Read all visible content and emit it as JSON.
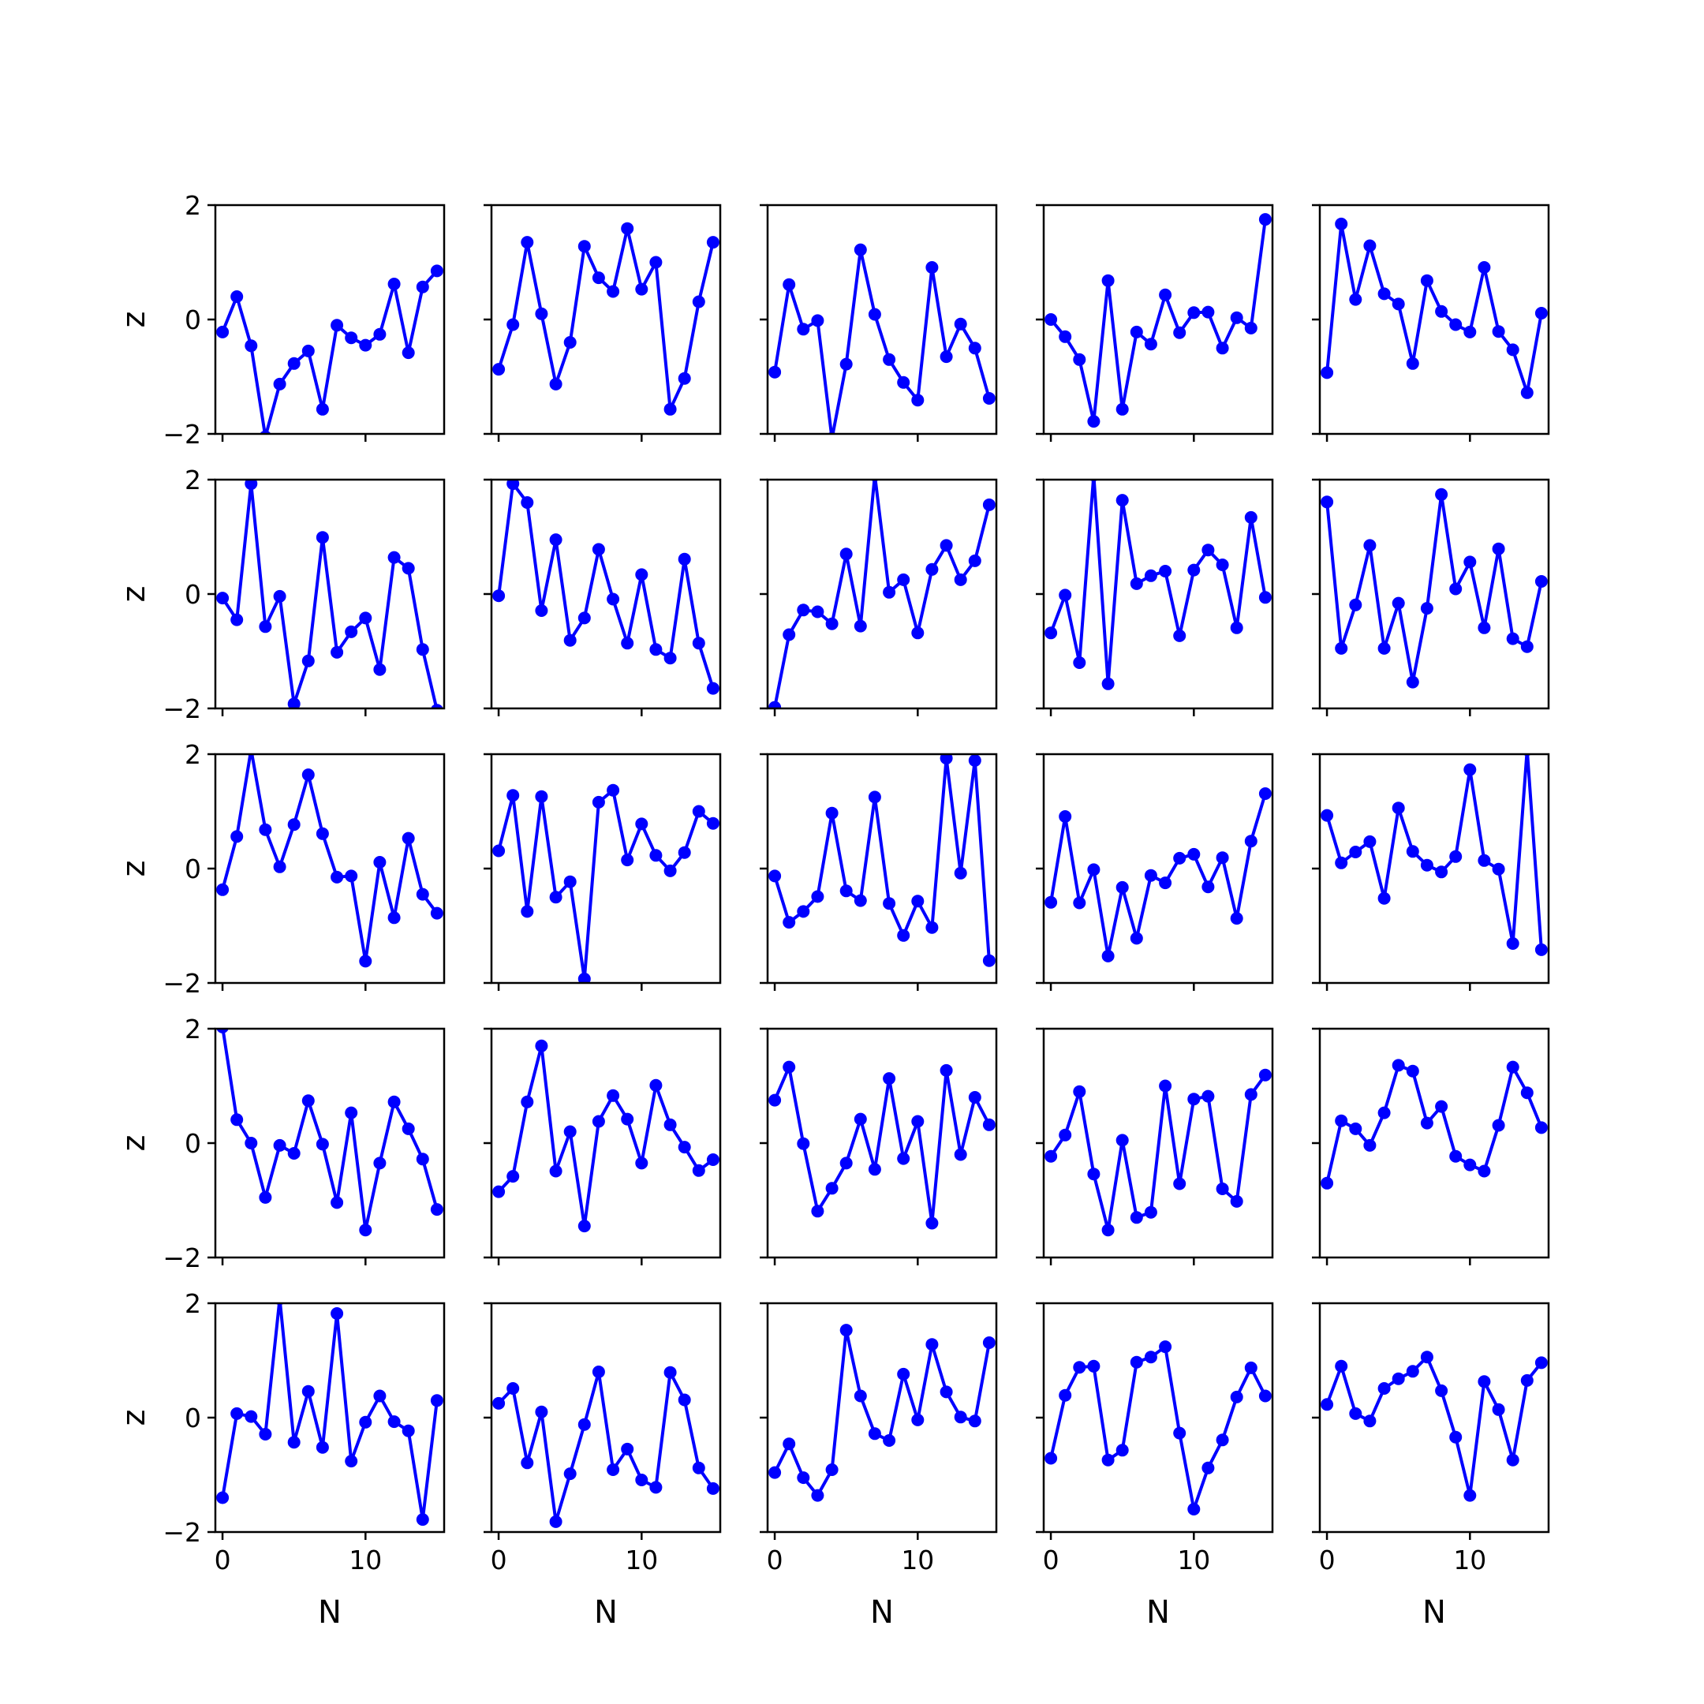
{
  "chart_data": {
    "type": "line",
    "layout": "5x5 grid of subplots",
    "xlabel": "N",
    "ylabel": "z",
    "xlim": [
      -0.5,
      15.5
    ],
    "ylim": [
      -2,
      2
    ],
    "x_ticks": [
      0,
      10
    ],
    "y_ticks": [
      -2,
      0,
      2
    ],
    "x_tick_labels": [
      "0",
      "10"
    ],
    "y_tick_labels": [
      "−2",
      "0",
      "2"
    ],
    "line_color": "#0000ff",
    "marker": "circle",
    "x": [
      0,
      1,
      2,
      3,
      4,
      5,
      6,
      7,
      8,
      9,
      10,
      11,
      12,
      13,
      14,
      15
    ],
    "panels": [
      [
        -0.22,
        0.4,
        -0.46,
        -2.05,
        -1.13,
        -0.77,
        -0.55,
        -1.57,
        -0.1,
        -0.32,
        -0.45,
        -0.26,
        0.62,
        -0.58,
        0.57,
        0.85
      ],
      [
        -0.87,
        -0.09,
        1.35,
        0.1,
        -1.13,
        -0.4,
        1.28,
        0.73,
        0.49,
        1.59,
        0.53,
        1.0,
        -1.57,
        -1.03,
        0.31,
        1.35
      ],
      [
        -0.92,
        0.61,
        -0.17,
        -0.02,
        -2.08,
        -0.78,
        1.22,
        0.09,
        -0.7,
        -1.1,
        -1.41,
        0.91,
        -0.65,
        -0.08,
        -0.5,
        -1.38
      ],
      [
        0.0,
        -0.3,
        -0.7,
        -1.78,
        0.68,
        -1.57,
        -0.22,
        -0.43,
        0.43,
        -0.23,
        0.12,
        0.13,
        -0.5,
        0.03,
        -0.15,
        1.75
      ],
      [
        -0.93,
        1.67,
        0.35,
        1.29,
        0.45,
        0.27,
        -0.77,
        0.68,
        0.14,
        -0.09,
        -0.22,
        0.91,
        -0.21,
        -0.53,
        -1.28,
        0.11
      ],
      [
        -0.07,
        -0.45,
        1.93,
        -0.57,
        -0.04,
        -1.92,
        -1.17,
        0.99,
        -1.02,
        -0.66,
        -0.42,
        -1.32,
        0.64,
        0.45,
        -0.97,
        -2.03
      ],
      [
        -0.03,
        1.93,
        1.6,
        -0.29,
        0.95,
        -0.81,
        -0.42,
        0.78,
        -0.09,
        -0.86,
        0.34,
        -0.97,
        -1.12,
        0.61,
        -0.86,
        -1.65
      ],
      [
        -1.98,
        -0.71,
        -0.28,
        -0.31,
        -0.52,
        0.7,
        -0.56,
        2.08,
        0.03,
        0.25,
        -0.68,
        0.43,
        0.85,
        0.25,
        0.58,
        1.56
      ],
      [
        -0.68,
        -0.02,
        -1.2,
        2.08,
        -1.57,
        1.64,
        0.18,
        0.32,
        0.4,
        -0.73,
        0.42,
        0.77,
        0.51,
        -0.59,
        1.34,
        -0.06
      ],
      [
        1.61,
        -0.95,
        -0.19,
        0.85,
        -0.95,
        -0.16,
        -1.54,
        -0.25,
        1.74,
        0.09,
        0.56,
        -0.59,
        0.79,
        -0.78,
        -0.92,
        0.22
      ],
      [
        -0.37,
        0.56,
        2.08,
        0.68,
        0.03,
        0.77,
        1.64,
        0.61,
        -0.15,
        -0.13,
        -1.62,
        0.11,
        -0.86,
        0.53,
        -0.45,
        -0.78
      ],
      [
        0.31,
        1.28,
        -0.75,
        1.26,
        -0.5,
        -0.23,
        -1.93,
        1.16,
        1.37,
        0.15,
        0.78,
        0.23,
        -0.04,
        0.28,
        1.0,
        0.79
      ],
      [
        -0.13,
        -0.94,
        -0.75,
        -0.49,
        0.97,
        -0.39,
        -0.56,
        1.25,
        -0.61,
        -1.17,
        -0.57,
        -1.03,
        1.93,
        -0.08,
        1.89,
        -1.61
      ],
      [
        -0.59,
        0.91,
        -0.6,
        -0.02,
        -1.53,
        -0.33,
        -1.22,
        -0.12,
        -0.25,
        0.18,
        0.25,
        -0.32,
        0.19,
        -0.87,
        0.48,
        1.31
      ],
      [
        0.93,
        0.1,
        0.29,
        0.47,
        -0.52,
        1.06,
        0.3,
        0.06,
        -0.06,
        0.21,
        1.73,
        0.14,
        -0.01,
        -1.31,
        2.08,
        -1.42
      ],
      [
        2.03,
        0.41,
        0.0,
        -0.95,
        -0.04,
        -0.18,
        0.74,
        -0.02,
        -1.04,
        0.53,
        -1.52,
        -0.35,
        0.72,
        0.25,
        -0.28,
        -1.16
      ],
      [
        -0.85,
        -0.58,
        0.72,
        1.7,
        -0.49,
        0.2,
        -1.45,
        0.38,
        0.83,
        0.42,
        -0.35,
        1.01,
        0.32,
        -0.07,
        -0.48,
        -0.29
      ],
      [
        0.75,
        1.33,
        -0.01,
        -1.19,
        -0.79,
        -0.35,
        0.42,
        -0.46,
        1.13,
        -0.27,
        0.38,
        -1.4,
        1.27,
        -0.2,
        0.8,
        0.32
      ],
      [
        -0.23,
        0.14,
        0.9,
        -0.54,
        -1.52,
        0.05,
        -1.3,
        -1.21,
        1.0,
        -0.71,
        0.77,
        0.82,
        -0.8,
        -1.02,
        0.85,
        1.19
      ],
      [
        -0.7,
        0.39,
        0.25,
        -0.04,
        0.53,
        1.36,
        1.26,
        0.35,
        0.64,
        -0.23,
        -0.38,
        -0.49,
        0.31,
        1.33,
        0.88,
        0.27
      ],
      [
        -1.4,
        0.07,
        0.02,
        -0.29,
        2.08,
        -0.43,
        0.46,
        -0.52,
        1.82,
        -0.76,
        -0.08,
        0.38,
        -0.07,
        -0.23,
        -1.78,
        0.3
      ],
      [
        0.25,
        0.51,
        -0.79,
        0.1,
        -1.82,
        -0.98,
        -0.12,
        0.8,
        -0.91,
        -0.55,
        -1.09,
        -1.22,
        0.79,
        0.31,
        -0.88,
        -1.24
      ],
      [
        -0.96,
        -0.46,
        -1.05,
        -1.36,
        -0.91,
        1.53,
        0.38,
        -0.28,
        -0.4,
        0.76,
        -0.04,
        1.28,
        0.45,
        0.01,
        -0.06,
        1.31
      ],
      [
        -0.71,
        0.39,
        0.88,
        0.9,
        -0.74,
        -0.57,
        0.97,
        1.06,
        1.24,
        -0.27,
        -1.6,
        -0.88,
        -0.39,
        0.36,
        0.87,
        0.38
      ],
      [
        0.23,
        0.9,
        0.07,
        -0.06,
        0.51,
        0.68,
        0.81,
        1.06,
        0.47,
        -0.34,
        -1.36,
        0.63,
        0.14,
        -0.74,
        0.65,
        0.96
      ]
    ]
  }
}
